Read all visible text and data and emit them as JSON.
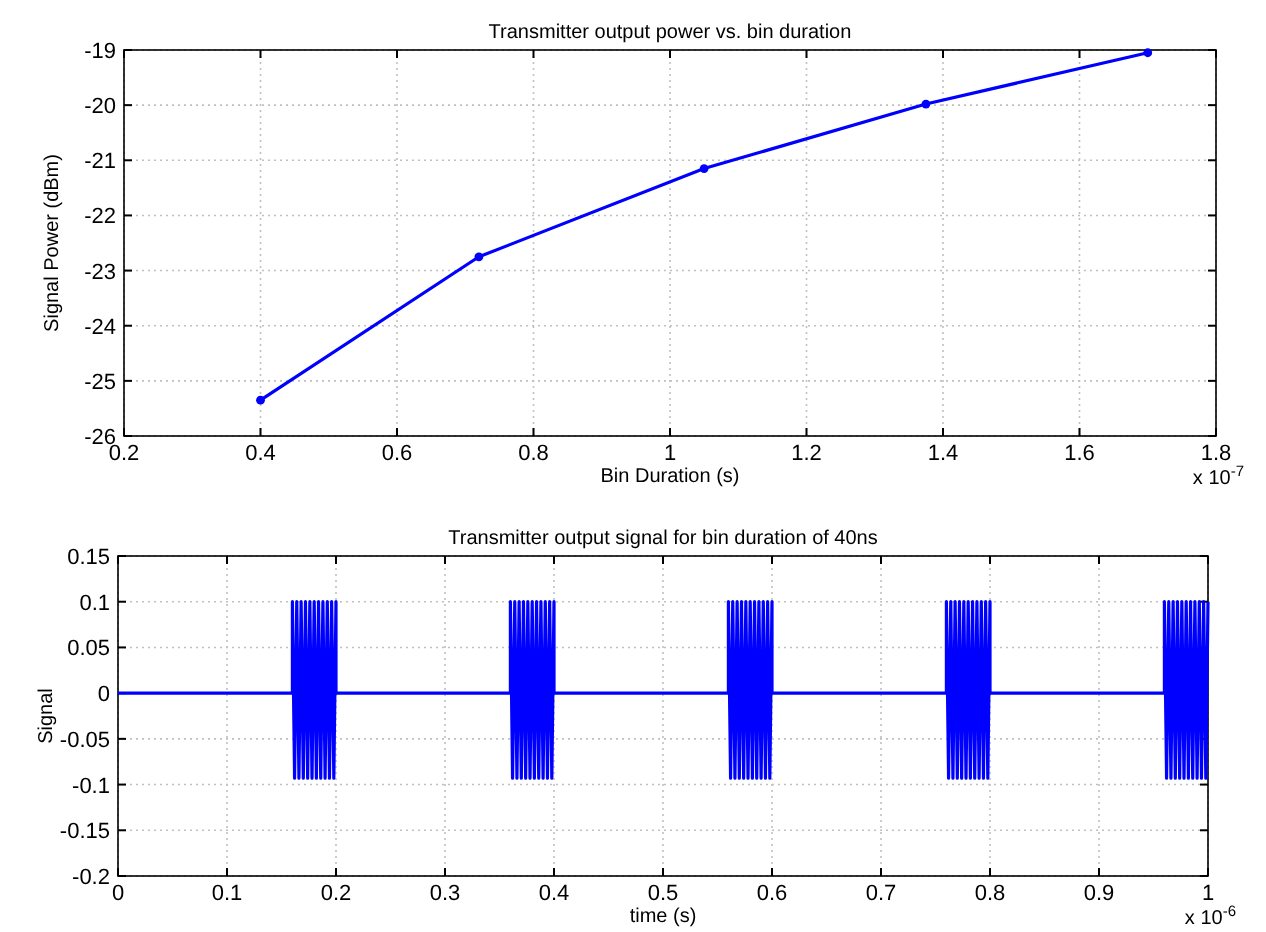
{
  "chart_data": [
    {
      "type": "line",
      "title": "Transmitter output power vs. bin duration",
      "xlabel": "Bin Duration (s)",
      "ylabel": "Signal Power (dBm)",
      "x": [
        0.4,
        0.72,
        1.05,
        1.375,
        1.7
      ],
      "series": [
        {
          "color": "#0000ff",
          "values": [
            -25.35,
            -22.75,
            -21.15,
            -19.98,
            -19.05
          ]
        }
      ],
      "xlim": [
        0.2,
        1.8
      ],
      "xticks": [
        0.2,
        0.4,
        0.6,
        0.8,
        1,
        1.2,
        1.4,
        1.6,
        1.8
      ],
      "ylim": [
        -26,
        -19
      ],
      "yticks": [
        -26,
        -25,
        -24,
        -23,
        -22,
        -21,
        -20,
        -19
      ],
      "grid": true,
      "marker": "circle",
      "annotations": [
        "x 10$^{-7}$"
      ]
    },
    {
      "type": "line",
      "title": "Transmitter output signal for bin duration of 40ns",
      "xlabel": "time (s)",
      "ylabel": "Signal",
      "x": [
        0,
        0.16,
        0.16,
        0.162,
        0.164,
        0.166,
        0.168,
        0.17,
        0.172,
        0.174,
        0.176,
        0.178,
        0.18,
        0.182,
        0.184,
        0.186,
        0.188,
        0.19,
        0.192,
        0.194,
        0.196,
        0.198,
        0.2,
        0.2,
        0.36,
        0.36,
        0.362,
        0.364,
        0.366,
        0.368,
        0.37,
        0.372,
        0.374,
        0.376,
        0.378,
        0.38,
        0.382,
        0.384,
        0.386,
        0.388,
        0.39,
        0.392,
        0.394,
        0.396,
        0.398,
        0.4,
        0.4,
        0.56,
        0.56,
        0.562,
        0.564,
        0.566,
        0.568,
        0.57,
        0.572,
        0.574,
        0.576,
        0.578,
        0.58,
        0.582,
        0.584,
        0.586,
        0.588,
        0.59,
        0.592,
        0.594,
        0.596,
        0.598,
        0.6,
        0.6,
        0.76,
        0.76,
        0.762,
        0.764,
        0.766,
        0.768,
        0.77,
        0.772,
        0.774,
        0.776,
        0.778,
        0.78,
        0.782,
        0.784,
        0.786,
        0.788,
        0.79,
        0.792,
        0.794,
        0.796,
        0.798,
        0.8,
        0.8,
        0.96,
        0.96,
        0.962,
        0.964,
        0.966,
        0.968,
        0.97,
        0.972,
        0.974,
        0.976,
        0.978,
        0.98,
        0.982,
        0.984,
        0.986,
        0.988,
        0.99,
        0.992,
        0.994,
        0.996,
        0.998,
        1
      ],
      "series": [
        {
          "color": "#0000ff",
          "values": [
            0,
            0,
            0.1,
            -0.093,
            0.1,
            -0.093,
            0.1,
            -0.093,
            0.1,
            -0.093,
            0.1,
            -0.093,
            0.1,
            -0.093,
            0.1,
            -0.093,
            0.1,
            -0.093,
            0.1,
            -0.093,
            0.1,
            -0.093,
            0.1,
            0,
            0,
            0.1,
            -0.093,
            0.1,
            -0.093,
            0.1,
            -0.093,
            0.1,
            -0.093,
            0.1,
            -0.093,
            0.1,
            -0.093,
            0.1,
            -0.093,
            0.1,
            -0.093,
            0.1,
            -0.093,
            0.1,
            -0.093,
            0.1,
            0,
            0,
            0.1,
            -0.093,
            0.1,
            -0.093,
            0.1,
            -0.093,
            0.1,
            -0.093,
            0.1,
            -0.093,
            0.1,
            -0.093,
            0.1,
            -0.093,
            0.1,
            -0.093,
            0.1,
            -0.093,
            0.1,
            -0.093,
            0.1,
            0,
            0,
            0.1,
            -0.093,
            0.1,
            -0.093,
            0.1,
            -0.093,
            0.1,
            -0.093,
            0.1,
            -0.093,
            0.1,
            -0.093,
            0.1,
            -0.093,
            0.1,
            -0.093,
            0.1,
            -0.093,
            0.1,
            -0.093,
            0.1,
            0,
            0,
            0.1,
            -0.093,
            0.1,
            -0.093,
            0.1,
            -0.093,
            0.1,
            -0.093,
            0.1,
            -0.093,
            0.1,
            -0.093,
            0.1,
            -0.093,
            0.1,
            -0.093,
            0.1,
            -0.093,
            0.1,
            -0.093,
            0.1
          ]
        }
      ],
      "xlim": [
        0,
        1
      ],
      "xticks": [
        0,
        0.1,
        0.2,
        0.3,
        0.4,
        0.5,
        0.6,
        0.7,
        0.8,
        0.9,
        1
      ],
      "ylim": [
        -0.2,
        0.15
      ],
      "yticks": [
        -0.2,
        -0.15,
        -0.1,
        -0.05,
        0,
        0.05,
        0.1,
        0.15
      ],
      "grid": true,
      "annotations": [
        "x 10$^{-6}$"
      ]
    }
  ]
}
